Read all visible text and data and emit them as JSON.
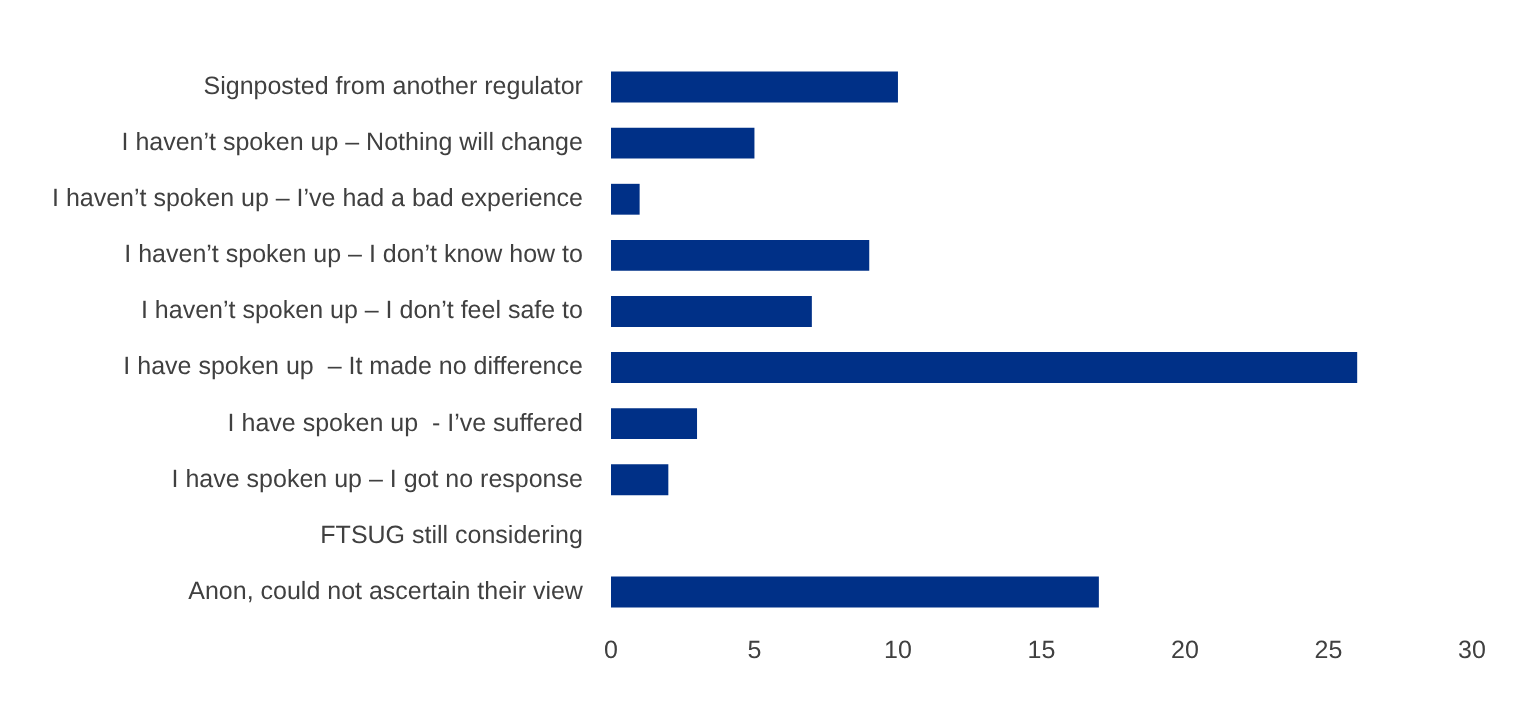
{
  "chart_data": {
    "type": "bar",
    "orientation": "horizontal",
    "categories": [
      "Signposted from another regulator",
      "I haven’t spoken up – Nothing will change",
      "I haven’t spoken up – I’ve had a bad experience",
      "I haven’t spoken up – I don’t know how to",
      "I haven’t spoken up – I don’t feel safe to",
      "I have spoken up  – It made no difference",
      "I have spoken up  - I’ve suffered",
      "I have spoken up – I got no response",
      "FTSUG still considering",
      "Anon, could not ascertain their view"
    ],
    "values": [
      10,
      5,
      1,
      9,
      7,
      26,
      3,
      2,
      0,
      17
    ],
    "color": "#003087",
    "xlim": [
      0,
      30
    ],
    "xticks": [
      0,
      5,
      10,
      15,
      20,
      25,
      30
    ],
    "grid": false,
    "legend": false
  }
}
